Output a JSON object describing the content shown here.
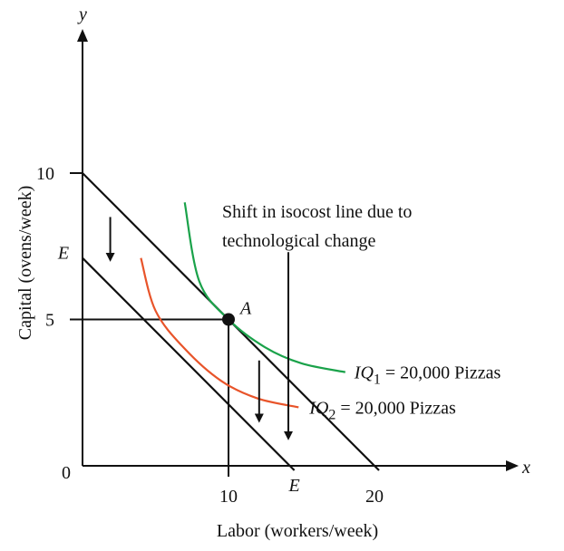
{
  "chart_data": {
    "type": "line",
    "axes": {
      "x_name": "x",
      "y_name": "y",
      "xlabel": "Labor (workers/week)",
      "ylabel": "Capital (ovens/week)",
      "xlim": [
        0,
        30
      ],
      "ylim": [
        0,
        15
      ],
      "origin_label": "0",
      "x_ticks": [
        {
          "value": 10,
          "label": "10"
        },
        {
          "value": 20,
          "label": "20"
        }
      ],
      "y_ticks": [
        {
          "value": 5,
          "label": "5"
        },
        {
          "value": 10,
          "label": "10"
        }
      ]
    },
    "isocost_lines": [
      {
        "points": [
          [
            0,
            10
          ],
          [
            20,
            0
          ]
        ]
      },
      {
        "points": [
          [
            0,
            7.1
          ],
          [
            14.2,
            0
          ]
        ],
        "y_label": "E",
        "x_label": "E"
      }
    ],
    "isoquants": [
      {
        "label_prefix": "IQ",
        "label_sub": "1",
        "label_suffix": " = 20,000 Pizzas",
        "color": "#1aa24a",
        "points": [
          [
            7,
            9
          ],
          [
            8,
            6.3
          ],
          [
            10,
            5
          ],
          [
            12.5,
            4.05
          ],
          [
            15,
            3.5
          ],
          [
            18,
            3.2
          ]
        ]
      },
      {
        "label_prefix": "IQ",
        "label_sub": "2",
        "label_suffix": " = 20,000 Pizzas",
        "color": "#e8542a",
        "points": [
          [
            4,
            7.1
          ],
          [
            5,
            5.3
          ],
          [
            7,
            4
          ],
          [
            9.5,
            2.9
          ],
          [
            12,
            2.3
          ],
          [
            14.8,
            2
          ]
        ]
      }
    ],
    "point": {
      "label": "A",
      "x": 10,
      "y": 5
    },
    "annotation": {
      "lines": [
        "Shift in isocost line due to",
        "technological change"
      ]
    },
    "shift_arrows": [
      {
        "x": 1.9,
        "y_from": 8.5,
        "y_to": 7.0
      },
      {
        "x": 12.1,
        "y_from": 3.6,
        "y_to": 1.5
      },
      {
        "x": 14.1,
        "y_from": 7.3,
        "y_to": 0.9
      }
    ]
  }
}
